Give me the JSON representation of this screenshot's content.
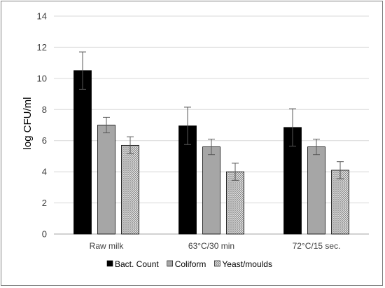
{
  "chart_data": {
    "type": "bar",
    "title": "",
    "xlabel": "",
    "ylabel": "log CFU/ml",
    "ylim": [
      0,
      14
    ],
    "yticks": [
      0,
      2,
      4,
      6,
      8,
      10,
      12,
      14
    ],
    "grid": true,
    "legend_position": "bottom",
    "categories": [
      "Raw milk",
      "63°C/30 min",
      "72°C/15 sec."
    ],
    "series": [
      {
        "name": "Bact. Count",
        "values": [
          10.5,
          6.95,
          6.85
        ],
        "errors": [
          1.2,
          1.2,
          1.2
        ],
        "fill": "solid",
        "color": "#000000"
      },
      {
        "name": "Coliform",
        "values": [
          7.0,
          5.6,
          5.6
        ],
        "errors": [
          0.5,
          0.5,
          0.5
        ],
        "fill": "solid",
        "color": "#a6a6a6"
      },
      {
        "name": "Yeast/moulds",
        "values": [
          5.7,
          4.0,
          4.1
        ],
        "errors": [
          0.55,
          0.55,
          0.55
        ],
        "fill": "crosshatch",
        "color": "#d9d9d9"
      }
    ]
  }
}
